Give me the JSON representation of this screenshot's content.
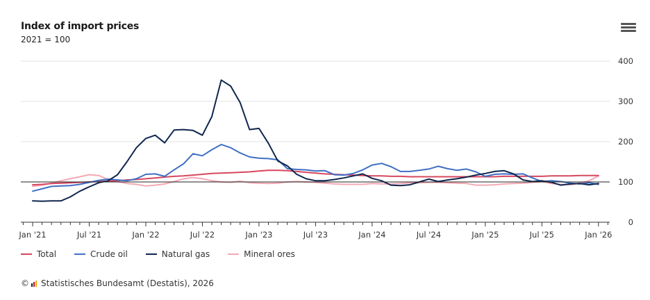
{
  "header": {
    "title": "Index of import prices",
    "subtitle": "2021 = 100",
    "menu_icon": "hamburger-menu-icon"
  },
  "footer": {
    "copyright_symbol": "©",
    "source": "Statistisches Bundesamt (Destatis), 2026"
  },
  "chart_data": {
    "type": "line",
    "title": "Index of import prices",
    "subtitle": "2021 = 100",
    "xlabel": "",
    "ylabel": "",
    "ylim": [
      0,
      400
    ],
    "yticks": [
      0,
      100,
      200,
      300,
      400
    ],
    "reference_line": 100,
    "grid": true,
    "y_axis_side": "right",
    "legend_position": "bottom-left",
    "x_start": "2021-01",
    "x_end": "2026-01",
    "x_ticks": [
      "Jan '21",
      "Jul '21",
      "Jan '22",
      "Jul '22",
      "Jan '23",
      "Jul '23",
      "Jan '24",
      "Jul '24",
      "Jan '25",
      "Jul '25",
      "Jan '26"
    ],
    "series": [
      {
        "name": "Total",
        "color": "#d6475e",
        "values": [
          93,
          94,
          96,
          97,
          98,
          99,
          100,
          101,
          102,
          103,
          105,
          106,
          108,
          110,
          112,
          114,
          115,
          117,
          119,
          121,
          122,
          123,
          124,
          125,
          127,
          129,
          129,
          128,
          126,
          124,
          122,
          120,
          119,
          118,
          117,
          116,
          115,
          115,
          114,
          114,
          113,
          113,
          113,
          113,
          113,
          113,
          113,
          113,
          113,
          113,
          114,
          114,
          114,
          114,
          114,
          115,
          115,
          115,
          116,
          116,
          116
        ]
      },
      {
        "name": "Crude oil",
        "color": "#3f6fc4",
        "values": [
          77,
          83,
          89,
          90,
          91,
          94,
          99,
          104,
          107,
          105,
          103,
          108,
          119,
          120,
          114,
          130,
          145,
          170,
          165,
          180,
          193,
          185,
          172,
          162,
          159,
          158,
          155,
          133,
          131,
          130,
          127,
          128,
          118,
          117,
          121,
          130,
          142,
          146,
          138,
          126,
          126,
          129,
          132,
          139,
          133,
          129,
          132,
          125,
          114,
          119,
          120,
          119,
          120,
          110,
          101,
          103,
          101,
          97,
          95,
          98,
          94
        ]
      },
      {
        "name": "Natural gas",
        "color": "#10254f",
        "values": [
          53,
          52,
          53,
          53,
          63,
          77,
          88,
          98,
          103,
          118,
          150,
          185,
          208,
          216,
          197,
          229,
          230,
          228,
          216,
          262,
          353,
          338,
          297,
          230,
          233,
          196,
          152,
          140,
          119,
          108,
          103,
          103,
          106,
          110,
          115,
          120,
          109,
          103,
          92,
          91,
          93,
          100,
          107,
          101,
          105,
          108,
          112,
          117,
          121,
          126,
          128,
          120,
          105,
          101,
          103,
          99,
          92,
          95,
          96,
          93,
          96
        ]
      },
      {
        "name": "Mineral ores",
        "color": "#f4a9b4",
        "values": [
          89,
          92,
          97,
          103,
          108,
          113,
          118,
          116,
          106,
          101,
          96,
          94,
          90,
          92,
          95,
          101,
          108,
          111,
          108,
          103,
          100,
          99,
          102,
          98,
          97,
          96,
          97,
          100,
          101,
          100,
          99,
          97,
          95,
          94,
          94,
          94,
          96,
          95,
          95,
          96,
          98,
          98,
          99,
          99,
          98,
          97,
          96,
          92,
          92,
          93,
          95,
          96,
          97,
          99,
          101,
          96,
          94,
          93,
          97,
          103,
          115
        ]
      }
    ]
  }
}
